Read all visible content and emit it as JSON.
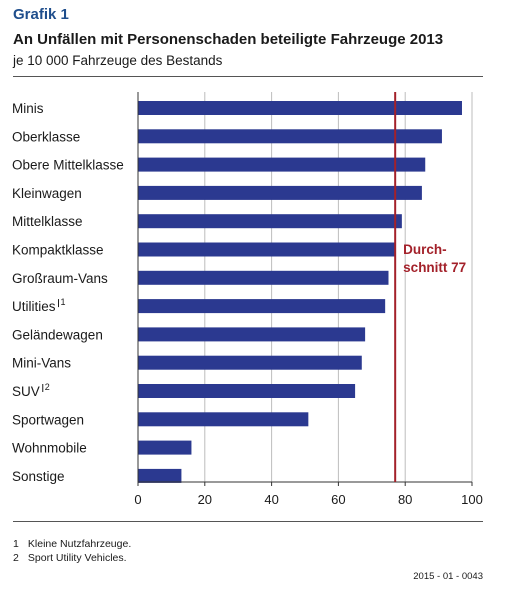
{
  "header": {
    "kicker": "Grafik 1",
    "title": "An Unfällen mit Personenschaden beteiligte Fahrzeuge 2013",
    "subtitle": "je 10 000 Fahrzeuge des Bestands"
  },
  "chart_data": {
    "type": "bar",
    "orientation": "horizontal",
    "categories": [
      "Minis",
      "Oberklasse",
      "Obere Mittelklasse",
      "Kleinwagen",
      "Mittelklasse",
      "Kompaktklasse",
      "Großraum-Vans",
      "Utilities",
      "Geländewagen",
      "Mini-Vans",
      "SUV",
      "Sportwagen",
      "Wohnmobile",
      "Sonstige"
    ],
    "footnote_marks": [
      "",
      "",
      "",
      "",
      "",
      "",
      "",
      "1",
      "",
      "",
      "2",
      "",
      "",
      ""
    ],
    "values": [
      97,
      91,
      86,
      85,
      79,
      77,
      75,
      74,
      68,
      67,
      65,
      51,
      16,
      13
    ],
    "xlim": [
      0,
      100
    ],
    "xticks": [
      0,
      20,
      40,
      60,
      80,
      100
    ],
    "grid": true,
    "reference_line": {
      "value": 77,
      "label_line1": "Durch-",
      "label_line2": "schnitt 77"
    },
    "colors": {
      "bar": "#2b3990",
      "reference": "#a3212a",
      "grid": "#bdbdbd",
      "axis": "#333333"
    }
  },
  "footnotes": [
    {
      "num": "1",
      "text": "Kleine Nutzfahrzeuge."
    },
    {
      "num": "2",
      "text": "Sport Utility Vehicles."
    }
  ],
  "code": "2015 - 01 - 0043"
}
